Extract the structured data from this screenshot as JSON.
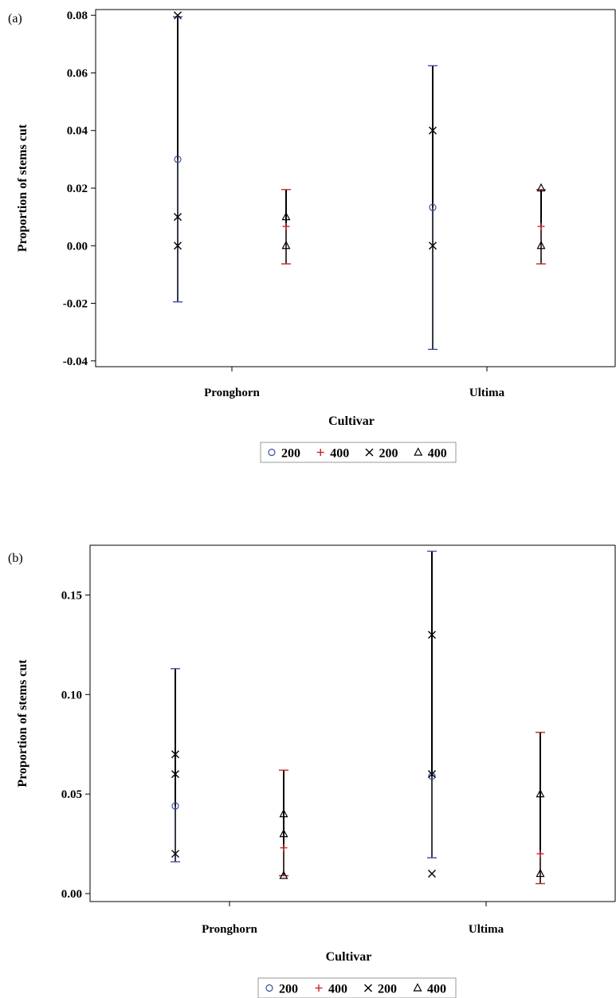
{
  "colors": {
    "series_200_mean": "#3a4fa0",
    "series_400_mean": "#c0282d",
    "observed": "#000000",
    "axis": "#000000"
  },
  "chart_data": [
    {
      "panel_label": "(a)",
      "type": "scatter",
      "title": "",
      "xlabel": "Cultivar",
      "ylabel": "Proportion of stems cut",
      "categories": [
        "Pronghorn",
        "Ultima"
      ],
      "ylim": [
        -0.042,
        0.082
      ],
      "yticks": [
        -0.04,
        -0.02,
        0.0,
        0.02,
        0.04,
        0.06,
        0.08
      ],
      "ytick_labels": [
        "-0.04",
        "-0.02",
        "0.00",
        "0.02",
        "0.04",
        "0.06",
        "0.08"
      ],
      "legend": {
        "placement": "bottom",
        "entries": [
          {
            "symbol": "circle",
            "label": "200",
            "color": "#3a4fa0"
          },
          {
            "symbol": "plus",
            "label": "400",
            "color": "#c0282d"
          },
          {
            "symbol": "x",
            "label": "200",
            "color": "#000000"
          },
          {
            "symbol": "triangle",
            "label": "400",
            "color": "#000000"
          }
        ]
      },
      "groups": [
        {
          "category": "Pronghorn",
          "series": "200",
          "offset": -1,
          "mean": 0.03,
          "lower": -0.0195,
          "upper": 0.0795,
          "observed": [
            0.08,
            0.01,
            0.0
          ]
        },
        {
          "category": "Pronghorn",
          "series": "400",
          "offset": 1,
          "mean": 0.0067,
          "lower": -0.0063,
          "upper": 0.0195,
          "observed": [
            0.01,
            0.0
          ]
        },
        {
          "category": "Ultima",
          "series": "200",
          "offset": -1,
          "mean": 0.0133,
          "lower": -0.036,
          "upper": 0.0625,
          "observed": [
            0.04,
            0.0
          ]
        },
        {
          "category": "Ultima",
          "series": "400",
          "offset": 1,
          "mean": 0.0067,
          "lower": -0.0063,
          "upper": 0.0195,
          "observed": [
            0.02,
            0.0
          ]
        }
      ]
    },
    {
      "panel_label": "(b)",
      "type": "scatter",
      "title": "",
      "xlabel": "Cultivar",
      "ylabel": "Proportion of stems cut",
      "categories": [
        "Pronghorn",
        "Ultima"
      ],
      "ylim": [
        -0.004,
        0.175
      ],
      "yticks": [
        0.0,
        0.05,
        0.1,
        0.15
      ],
      "ytick_labels": [
        "0.00",
        "0.05",
        "0.10",
        "0.15"
      ],
      "legend": {
        "placement": "bottom",
        "entries": [
          {
            "symbol": "circle",
            "label": "200",
            "color": "#3a4fa0"
          },
          {
            "symbol": "plus",
            "label": "400",
            "color": "#c0282d"
          },
          {
            "symbol": "x",
            "label": "200",
            "color": "#000000"
          },
          {
            "symbol": "triangle",
            "label": "400",
            "color": "#000000"
          }
        ]
      },
      "groups": [
        {
          "category": "Pronghorn",
          "series": "200",
          "offset": -1,
          "mean": 0.044,
          "lower": 0.016,
          "upper": 0.113,
          "observed": [
            0.07,
            0.06,
            0.02
          ]
        },
        {
          "category": "Pronghorn",
          "series": "400",
          "offset": 1,
          "mean": 0.023,
          "lower": 0.009,
          "upper": 0.062,
          "observed": [
            0.04,
            0.03,
            0.009
          ]
        },
        {
          "category": "Ultima",
          "series": "200",
          "offset": -1,
          "mean": 0.059,
          "lower": 0.018,
          "upper": 0.172,
          "observed": [
            0.13,
            0.06,
            0.01
          ]
        },
        {
          "category": "Ultima",
          "series": "400",
          "offset": 1,
          "mean": 0.02,
          "lower": 0.005,
          "upper": 0.081,
          "observed": [
            0.05,
            0.01
          ]
        }
      ]
    }
  ]
}
